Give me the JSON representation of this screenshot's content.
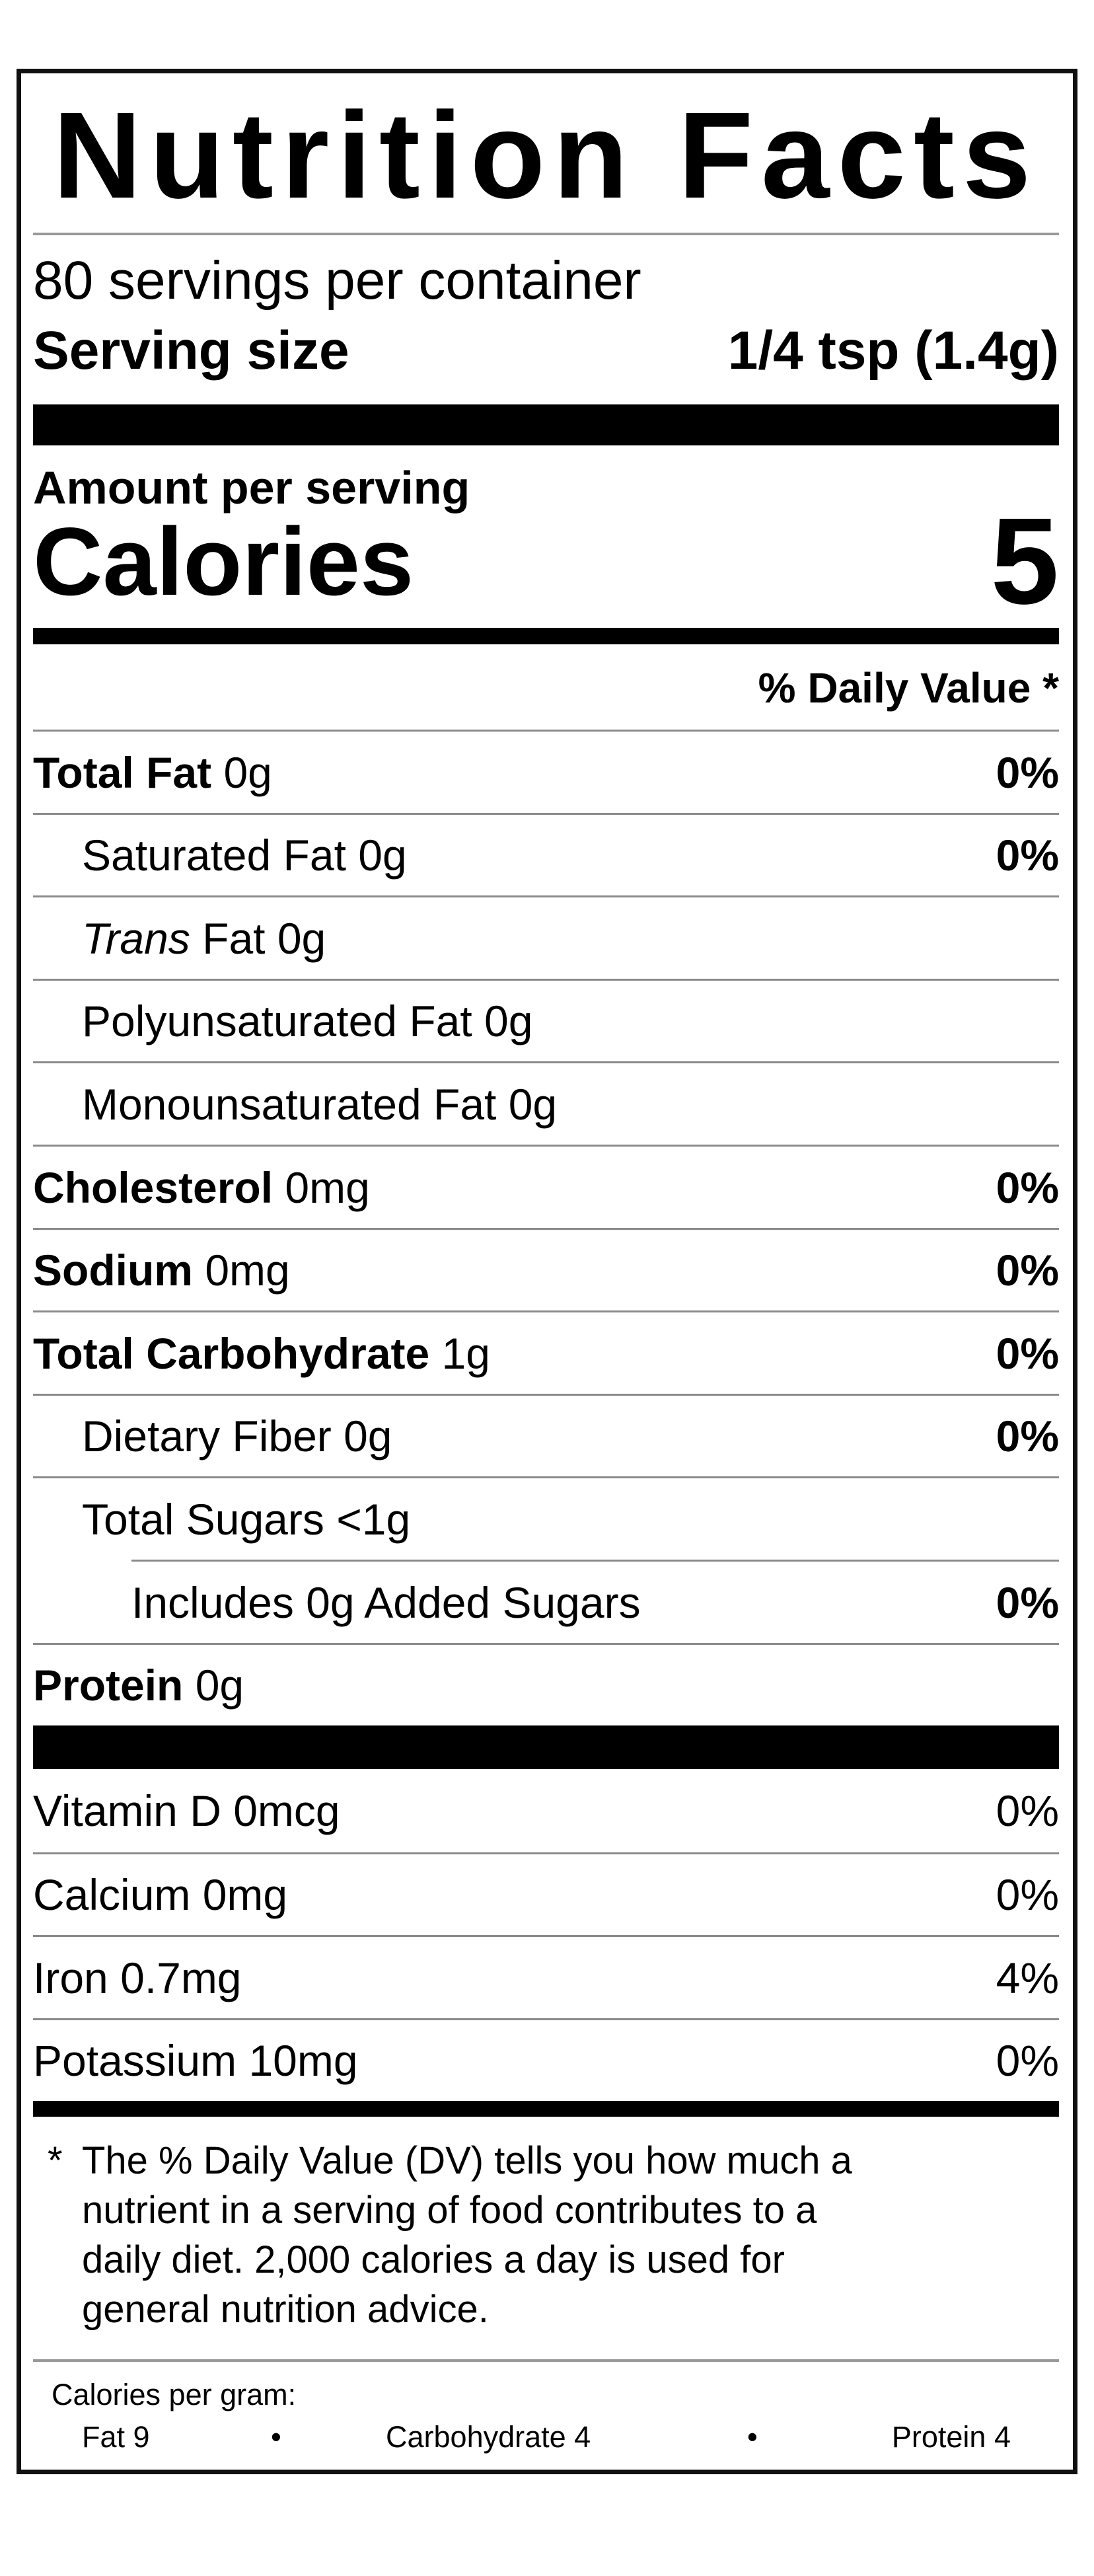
{
  "title": "Nutrition Facts",
  "servings_per_container": "80 servings per container",
  "serving_size": {
    "label": "Serving size",
    "value": "1/4 tsp (1.4g)"
  },
  "amount_per_serving": "Amount per serving",
  "calories": {
    "label": "Calories",
    "value": "5"
  },
  "daily_value_header": "% Daily Value *",
  "nutrients": [
    {
      "bold": "Total Fat",
      "italic": "",
      "text": "0g",
      "dv": "0%",
      "indent": 0
    },
    {
      "bold": "",
      "italic": "",
      "text": "Saturated Fat 0g",
      "dv": "0%",
      "indent": 1
    },
    {
      "bold": "",
      "italic": "Trans",
      "text": "Fat 0g",
      "dv": "",
      "indent": 1
    },
    {
      "bold": "",
      "italic": "",
      "text": "Polyunsaturated Fat 0g",
      "dv": "",
      "indent": 1
    },
    {
      "bold": "",
      "italic": "",
      "text": "Monounsaturated Fat 0g",
      "dv": "",
      "indent": 1
    },
    {
      "bold": "Cholesterol",
      "italic": "",
      "text": "0mg",
      "dv": "0%",
      "indent": 0
    },
    {
      "bold": "Sodium",
      "italic": "",
      "text": "0mg",
      "dv": "0%",
      "indent": 0
    },
    {
      "bold": "Total Carbohydrate",
      "italic": "",
      "text": "1g",
      "dv": "0%",
      "indent": 0
    },
    {
      "bold": "",
      "italic": "",
      "text": "Dietary Fiber 0g",
      "dv": "0%",
      "indent": 1
    },
    {
      "bold": "",
      "italic": "",
      "text": "Total Sugars <1g",
      "dv": "",
      "indent": 1
    },
    {
      "bold": "",
      "italic": "",
      "text": "Includes 0g Added Sugars",
      "dv": "0%",
      "indent": 2
    },
    {
      "bold": "Protein",
      "italic": "",
      "text": "0g",
      "dv": "",
      "indent": 0
    }
  ],
  "vitamins": [
    {
      "text": "Vitamin D 0mcg",
      "dv": "0%"
    },
    {
      "text": "Calcium 0mg",
      "dv": "0%"
    },
    {
      "text": "Iron 0.7mg",
      "dv": "4%"
    },
    {
      "text": "Potassium 10mg",
      "dv": "0%"
    }
  ],
  "footnote": {
    "asterisk": "*",
    "lines": [
      "The % Daily Value (DV) tells you how much a",
      "nutrient in a serving of food contributes to a",
      "daily diet. 2,000 calories a day is used for",
      "general nutrition advice."
    ]
  },
  "calories_per_gram": {
    "label": "Calories per gram:",
    "fat": "Fat 9",
    "carbohydrate": "Carbohydrate 4",
    "protein": "Protein 4",
    "separator": "•"
  }
}
